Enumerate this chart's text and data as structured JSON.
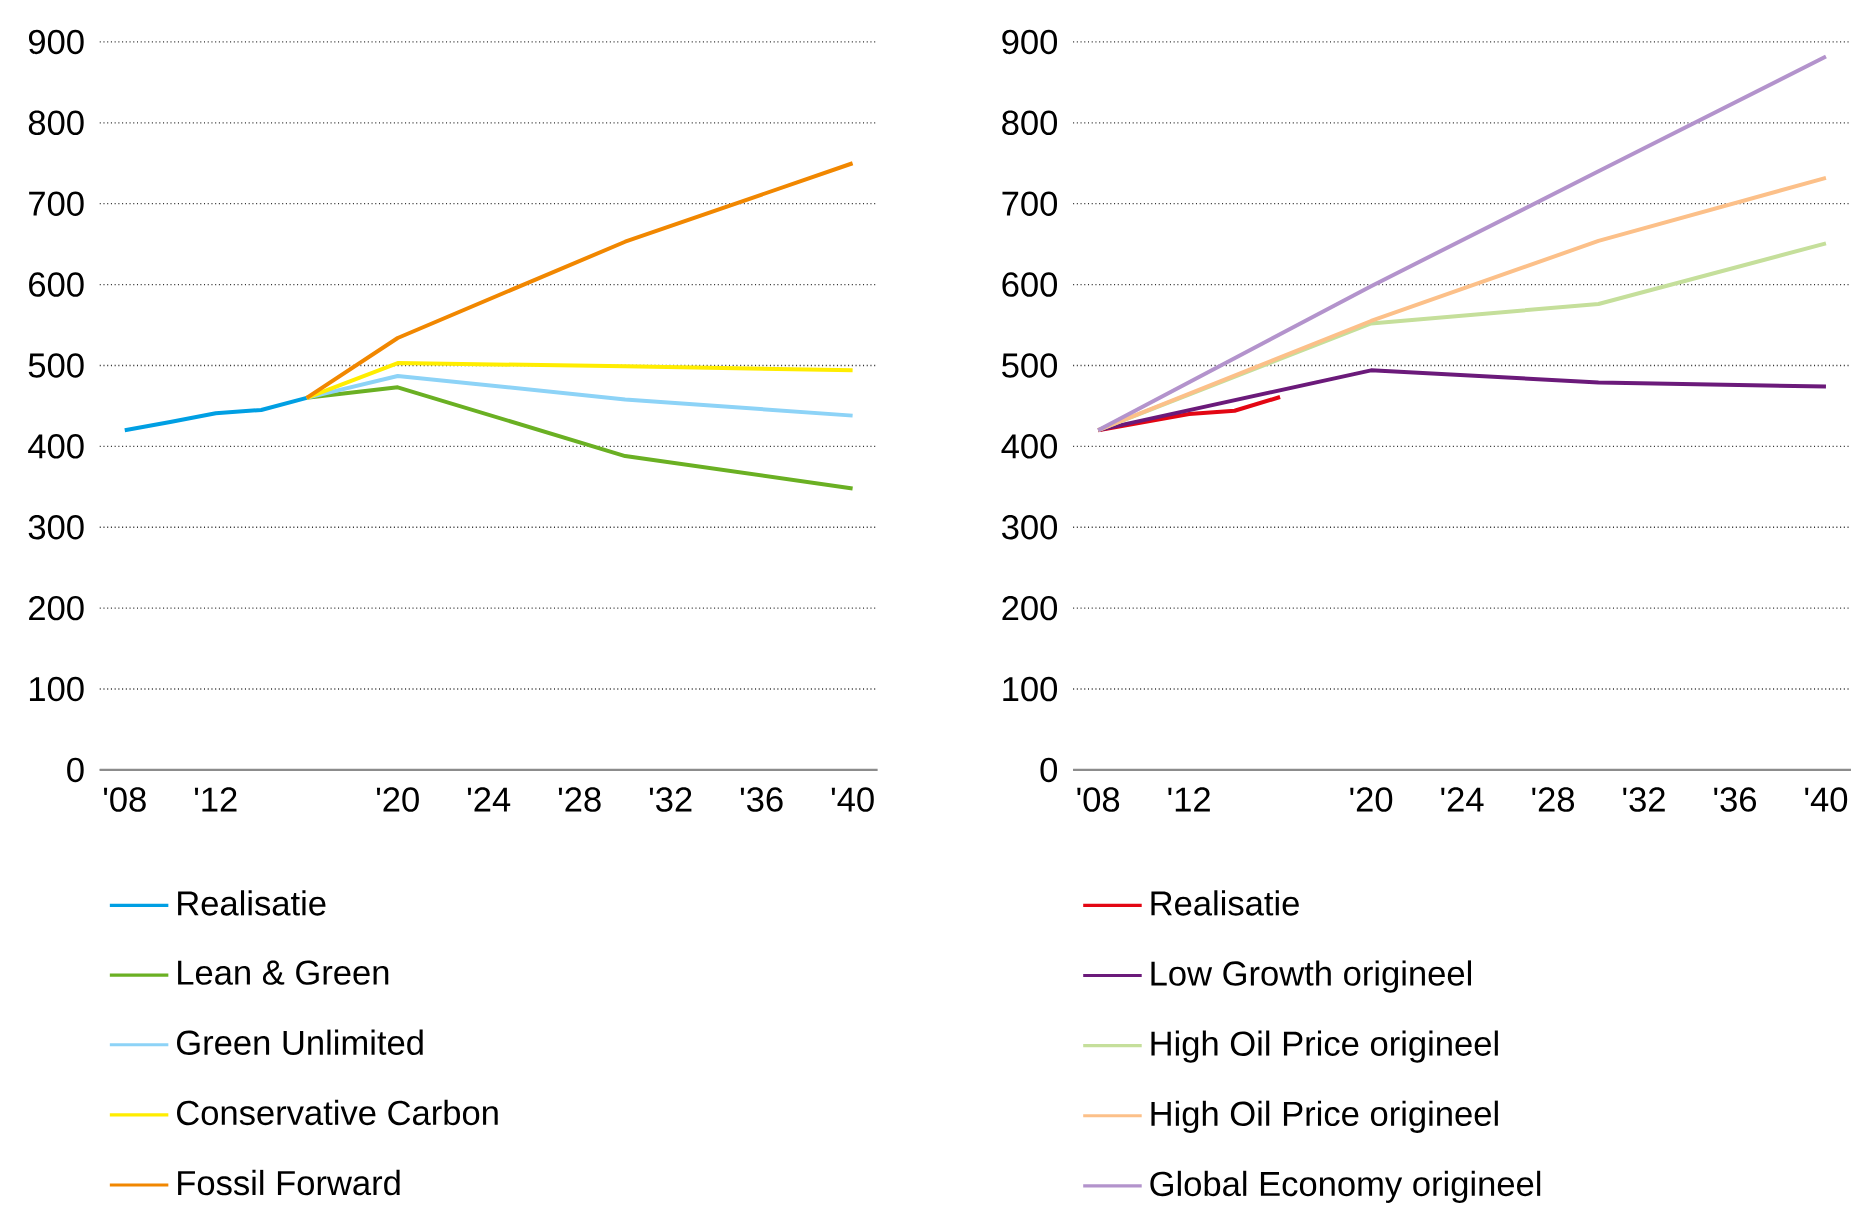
{
  "chart_data": [
    {
      "type": "line",
      "xlim": [
        2006.9,
        2041.1
      ],
      "ylim": [
        0,
        900
      ],
      "xticks": [
        {
          "value": 2008,
          "label": "'08"
        },
        {
          "value": 2012,
          "label": "'12"
        },
        {
          "value": 2020,
          "label": "'20"
        },
        {
          "value": 2024,
          "label": "'24"
        },
        {
          "value": 2028,
          "label": "'28"
        },
        {
          "value": 2032,
          "label": "'32"
        },
        {
          "value": 2036,
          "label": "'36"
        },
        {
          "value": 2040,
          "label": "'40"
        }
      ],
      "yticks": [
        0,
        100,
        200,
        300,
        400,
        500,
        600,
        700,
        800,
        900
      ],
      "grid": "y",
      "legend": "bottom",
      "series": [
        {
          "name": "Realisatie",
          "color": "#009fe3",
          "x": [
            2008,
            2010,
            2012,
            2014,
            2016
          ],
          "values": [
            420,
            430,
            441,
            445,
            460
          ]
        },
        {
          "name": "Lean & Green",
          "color": "#6ab023",
          "x": [
            2016,
            2020,
            2030,
            2040
          ],
          "values": [
            460,
            473,
            388,
            348
          ]
        },
        {
          "name": "Green Unlimited",
          "color": "#8dd3f7",
          "x": [
            2016,
            2020,
            2030,
            2040
          ],
          "values": [
            460,
            487,
            458,
            438
          ]
        },
        {
          "name": "Conservative Carbon",
          "color": "#ffed00",
          "x": [
            2016,
            2020,
            2030,
            2040
          ],
          "values": [
            460,
            503,
            499,
            494
          ]
        },
        {
          "name": "Fossil Forward",
          "color": "#f18700",
          "x": [
            2016,
            2020,
            2030,
            2040
          ],
          "values": [
            460,
            534,
            653,
            750
          ]
        }
      ]
    },
    {
      "type": "line",
      "xlim": [
        2006.9,
        2041.1
      ],
      "ylim": [
        0,
        900
      ],
      "xticks": [
        {
          "value": 2008,
          "label": "'08"
        },
        {
          "value": 2012,
          "label": "'12"
        },
        {
          "value": 2020,
          "label": "'20"
        },
        {
          "value": 2024,
          "label": "'24"
        },
        {
          "value": 2028,
          "label": "'28"
        },
        {
          "value": 2032,
          "label": "'32"
        },
        {
          "value": 2036,
          "label": "'36"
        },
        {
          "value": 2040,
          "label": "'40"
        }
      ],
      "yticks": [
        0,
        100,
        200,
        300,
        400,
        500,
        600,
        700,
        800,
        900
      ],
      "grid": "y",
      "legend": "bottom",
      "series": [
        {
          "name": "Realisatie",
          "color": "#e30613",
          "x": [
            2008,
            2012,
            2014,
            2016
          ],
          "values": [
            420,
            440,
            444,
            461
          ]
        },
        {
          "name": "Low Growth origineel",
          "color": "#6b1a7a",
          "x": [
            2008,
            2020,
            2030,
            2040
          ],
          "values": [
            420,
            494,
            479,
            474
          ]
        },
        {
          "name": "High Oil Price origineel",
          "color": "#c5df9b",
          "x": [
            2008,
            2020,
            2030,
            2040
          ],
          "values": [
            420,
            552,
            576,
            651
          ]
        },
        {
          "name": "High Oil Price origineel",
          "color": "#fcc089",
          "x": [
            2008,
            2020,
            2030,
            2040
          ],
          "values": [
            420,
            555,
            654,
            732
          ]
        },
        {
          "name": "Global Economy origineel",
          "color": "#b393cc",
          "x": [
            2008,
            2020,
            2030,
            2040
          ],
          "values": [
            420,
            598,
            740,
            882
          ]
        }
      ]
    }
  ]
}
